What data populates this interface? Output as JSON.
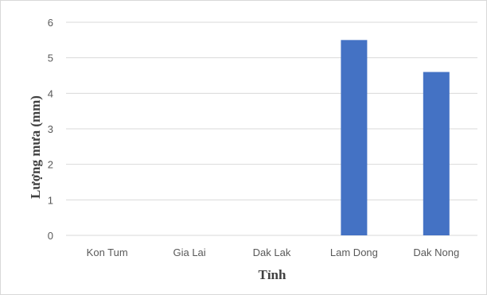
{
  "chart_data": {
    "type": "bar",
    "title": "",
    "xlabel": "Tỉnh",
    "ylabel": "Lượng mưa (mm)",
    "categories": [
      "Kon Tum",
      "Gia Lai",
      "Dak Lak",
      "Lam Dong",
      "Dak Nong"
    ],
    "series": [
      {
        "values": [
          0,
          0,
          0,
          5.5,
          4.6
        ]
      }
    ],
    "ylim": [
      0,
      6
    ],
    "yticks": [
      "0",
      "1",
      "2",
      "3",
      "4",
      "5",
      "6"
    ],
    "grid": true,
    "legend": "none",
    "bar_color": "#4472c4",
    "grid_color": "#d9d9d9"
  }
}
